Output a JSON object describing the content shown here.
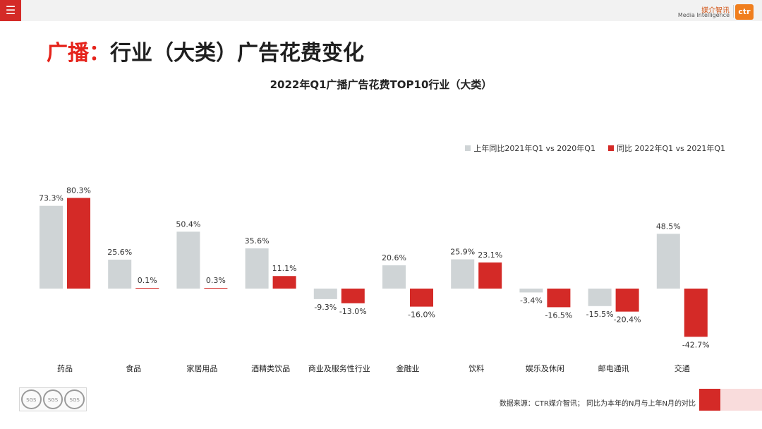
{
  "header": {
    "menu_icon": "hamburger-icon",
    "logo_cn": "媒介智讯",
    "logo_en": "Media Intelligence",
    "logo_mark": "ctr"
  },
  "slide": {
    "title_accent": "广播：",
    "title_rest": "行业（大类）广告花费变化"
  },
  "colors": {
    "series_prev": "#cfd4d6",
    "series_curr": "#d42a27",
    "accent": "#e5231b"
  },
  "chart_data": {
    "type": "bar",
    "title": "2022年Q1广播广告花费TOP10行业（大类）",
    "categories": [
      "药品",
      "食品",
      "家居用品",
      "酒精类饮品",
      "商业及服务性行业",
      "金融业",
      "饮料",
      "娱乐及休闲",
      "邮电通讯",
      "交通"
    ],
    "series": [
      {
        "name": "上年同比2021年Q1 vs 2020年Q1",
        "values": [
          73.3,
          25.6,
          50.4,
          35.6,
          -9.3,
          20.6,
          25.9,
          -3.4,
          -15.5,
          48.5
        ],
        "labels": [
          "73.3%",
          "25.6%",
          "50.4%",
          "35.6%",
          "-9.3%",
          "20.6%",
          "25.9%",
          "-3.4%",
          "-15.5%",
          "48.5%"
        ]
      },
      {
        "name": "同比 2022年Q1 vs 2021年Q1",
        "values": [
          80.3,
          0.1,
          0.3,
          11.1,
          -13.0,
          -16.0,
          23.1,
          -16.5,
          -20.4,
          -42.7
        ],
        "labels": [
          "80.3%",
          "0.1%",
          "0.3%",
          "11.1%",
          "-13.0%",
          "-16.0%",
          "23.1%",
          "-16.5%",
          "-20.4%",
          "-42.7%"
        ]
      }
    ],
    "ylim": [
      -42.7,
      80.3
    ],
    "grid": false,
    "legend_position": "top-right",
    "xlabel": "",
    "ylabel": ""
  },
  "footer": {
    "note": "数据来源：CTR媒介智讯；  同比为本年的N月与上年N月的对比",
    "cert_label": "SGS"
  }
}
